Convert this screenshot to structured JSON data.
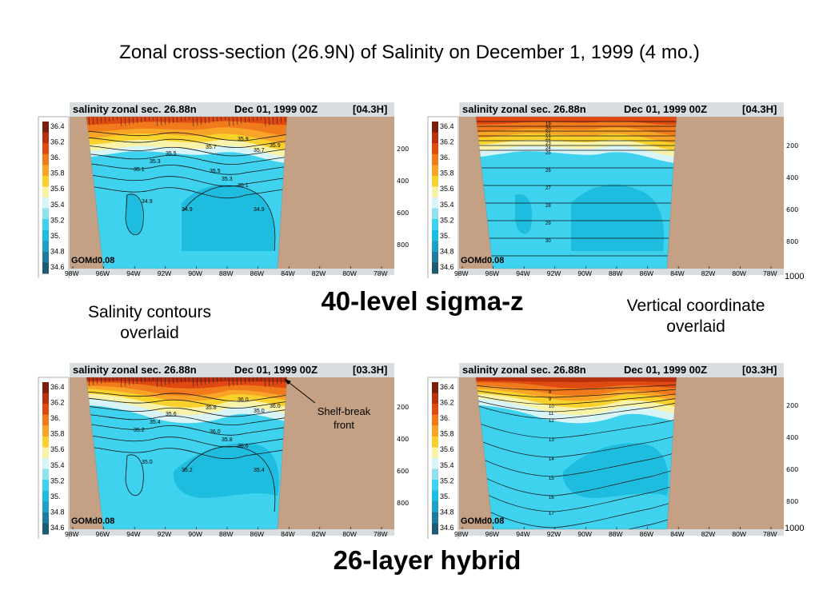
{
  "slide": {
    "title": "Zonal cross-section (26.9N) of Salinity on December 1, 1999 (4 mo.)",
    "label_top": "40-level sigma-z",
    "label_bottom": "26-layer hybrid",
    "note_left_line1": "Salinity contours",
    "note_left_line2": "overlaid",
    "note_right_line1": "Vertical coordinate",
    "note_right_line2": "overlaid",
    "annotation_line1": "Shelf-break",
    "annotation_line2": "front",
    "depth_bottom": "1000"
  },
  "colors": {
    "land": "#c4a184",
    "bg": "#d8dde0",
    "scale": [
      "#7a1f0b",
      "#b8300e",
      "#e04a12",
      "#f07a1c",
      "#f8a426",
      "#f8d12c",
      "#f8f3a8",
      "#d8f4f6",
      "#8fe1f0",
      "#3fd2ef",
      "#1ebde0",
      "#1f9fc3",
      "#1d7a9c",
      "#1f5a73"
    ]
  },
  "chart_data": [
    {
      "type": "heatmap",
      "title": "salinity zonal sec. 26.88n",
      "date": "Dec 01, 1999  00Z",
      "tag": "[04.3H]",
      "model": "GOMd0.08",
      "overlay": "salinity contours",
      "colorbar": [
        "36.4",
        "36.2",
        "36.",
        "35.8",
        "35.6",
        "35.4",
        "35.2",
        "35.",
        "34.8",
        "34.6"
      ],
      "x_ticks": [
        "98W",
        "96W",
        "94W",
        "92W",
        "90W",
        "88W",
        "86W",
        "84W",
        "82W",
        "80W",
        "78W"
      ],
      "contour_labels": [
        "35.9",
        "35.7",
        "35.5",
        "35.3",
        "35.1",
        "34.9",
        "35.5",
        "35.3",
        "35.1",
        "34.9",
        "34.9",
        "35.7",
        "35.9"
      ],
      "depth_ticks": [
        "200",
        "400",
        "600",
        "800"
      ]
    },
    {
      "type": "heatmap",
      "title": "salinity zonal sec. 26.88n",
      "date": "Dec 01, 1999  00Z",
      "tag": "[04.3H]",
      "model": "GOMd0.08",
      "overlay": "vertical coordinate",
      "colorbar": [
        "36.4",
        "36.2",
        "36.",
        "35.8",
        "35.6",
        "35.4",
        "35.2",
        "35.",
        "34.8",
        "34.6"
      ],
      "x_ticks": [
        "98W",
        "96W",
        "94W",
        "92W",
        "90W",
        "88W",
        "86W",
        "84W",
        "82W",
        "80W",
        "78W"
      ],
      "layer_labels": [
        "19",
        "20",
        "21",
        "22",
        "23",
        "24",
        "25",
        "26",
        "27",
        "28",
        "29",
        "30"
      ],
      "depth_ticks": [
        "200",
        "400",
        "600",
        "800"
      ]
    },
    {
      "type": "heatmap",
      "title": "salinity zonal sec. 26.88n",
      "date": "Dec 01, 1999  00Z",
      "tag": "[03.3H]",
      "model": "GOMd0.08",
      "overlay": "salinity contours",
      "colorbar": [
        "36.4",
        "36.2",
        "36.",
        "35.8",
        "35.6",
        "35.4",
        "35.2",
        "35.",
        "34.8",
        "34.6"
      ],
      "x_ticks": [
        "98W",
        "96W",
        "94W",
        "92W",
        "90W",
        "88W",
        "86W",
        "84W",
        "82W",
        "80W",
        "78W"
      ],
      "contour_labels": [
        "36.0",
        "35.8",
        "35.6",
        "35.4",
        "35.2",
        "35.0",
        "36.0",
        "35.8",
        "35.6",
        "35.4",
        "35.2",
        "35.0",
        "36.0"
      ],
      "depth_ticks": [
        "200",
        "400",
        "600",
        "800"
      ]
    },
    {
      "type": "heatmap",
      "title": "salinity zonal sec. 26.88n",
      "date": "Dec 01, 1999  00Z",
      "tag": "[03.3H]",
      "model": "GOMd0.08",
      "overlay": "vertical coordinate",
      "colorbar": [
        "36.4",
        "36.2",
        "36.",
        "35.8",
        "35.6",
        "35.4",
        "35.2",
        "35.",
        "34.8",
        "34.6"
      ],
      "x_ticks": [
        "98W",
        "96W",
        "94W",
        "92W",
        "90W",
        "88W",
        "86W",
        "84W",
        "82W",
        "80W",
        "78W"
      ],
      "layer_labels": [
        "8",
        "9",
        "10",
        "11",
        "12",
        "13",
        "14",
        "15",
        "16",
        "17"
      ],
      "depth_ticks": [
        "200",
        "400",
        "600",
        "800"
      ]
    }
  ]
}
